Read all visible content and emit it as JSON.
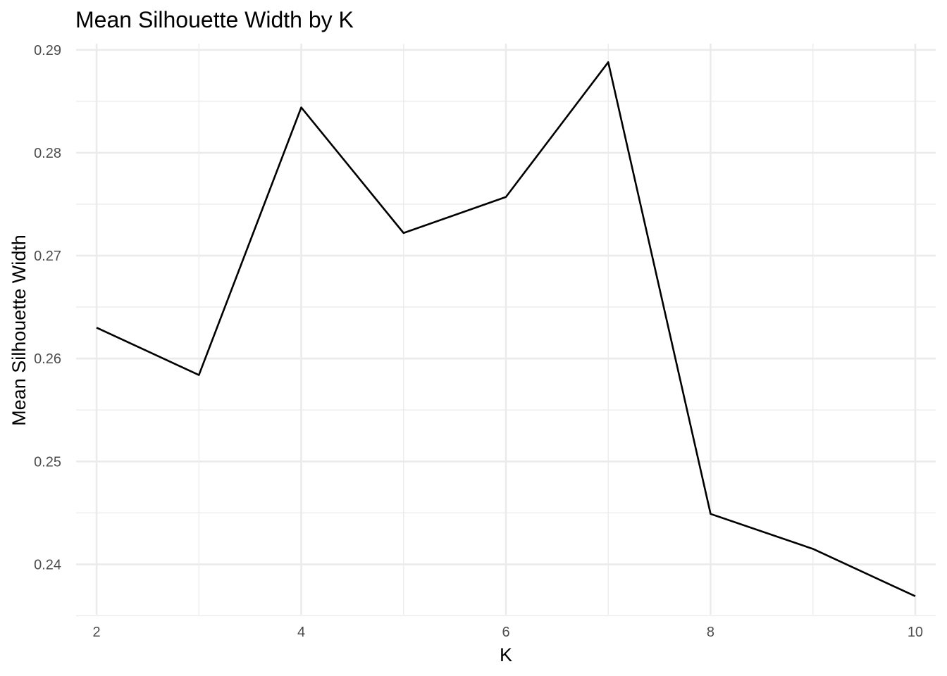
{
  "chart_data": {
    "type": "line",
    "title": "Mean Silhouette Width by K",
    "xlabel": "K",
    "ylabel": "Mean Silhouette Width",
    "x": [
      2,
      3,
      4,
      5,
      6,
      7,
      8,
      9,
      10
    ],
    "series": [
      {
        "values": [
          0.263,
          0.2584,
          0.2844,
          0.2722,
          0.2757,
          0.2888,
          0.2449,
          0.2415,
          0.2369
        ],
        "color": "#000000"
      }
    ],
    "xlim": [
      1.8,
      10.2
    ],
    "ylim": [
      0.2351,
      0.2906
    ],
    "x_ticks": [
      2,
      4,
      6,
      8,
      10
    ],
    "x_tick_labels": [
      "2",
      "4",
      "6",
      "8",
      "10"
    ],
    "x_minor_ticks": [
      3,
      5,
      7,
      9
    ],
    "y_ticks": [
      0.24,
      0.25,
      0.26,
      0.27,
      0.28,
      0.29
    ],
    "y_tick_labels": [
      "0.24",
      "0.25",
      "0.26",
      "0.27",
      "0.28",
      "0.29"
    ],
    "y_minor_ticks": [
      0.235,
      0.245,
      0.255,
      0.265,
      0.275,
      0.285
    ],
    "grid": true,
    "legend": "none",
    "grid_color": "#ebebeb",
    "tick_label_color": "#4d4d4d"
  }
}
